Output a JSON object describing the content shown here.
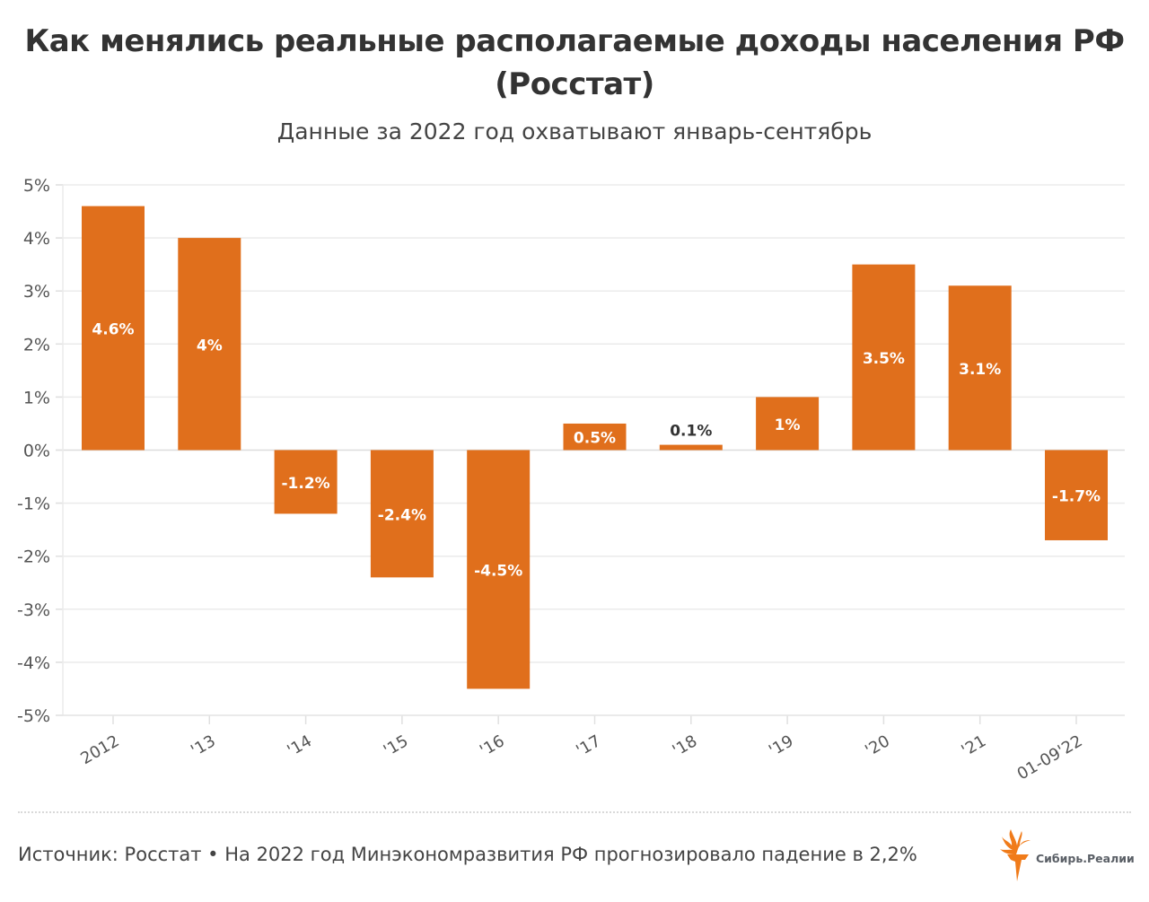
{
  "header": {
    "title_line1": "Как менялись реальные располагаемые доходы населения РФ",
    "title_line2": "(Росстат)",
    "subtitle": "Данные за 2022 год охватывают январь-сентябрь"
  },
  "chart_data": {
    "type": "bar",
    "title": "Как менялись реальные располагаемые доходы населения РФ (Росстат)",
    "subtitle": "Данные за 2022 год охватывают январь-сентябрь",
    "xlabel": "",
    "ylabel": "",
    "categories": [
      "2012",
      "'13",
      "'14",
      "'15",
      "'16",
      "'17",
      "'18",
      "'19",
      "'20",
      "'21",
      "01-09'22"
    ],
    "values": [
      4.6,
      4.0,
      -1.2,
      -2.4,
      -4.5,
      0.5,
      0.1,
      1.0,
      3.5,
      3.1,
      -1.7
    ],
    "data_labels": [
      "4.6%",
      "4%",
      "-1.2%",
      "-2.4%",
      "-4.5%",
      "0.5%",
      "0.1%",
      "1%",
      "3.5%",
      "3.1%",
      "-1.7%"
    ],
    "ylim": [
      -5,
      5
    ],
    "yticks": [
      5,
      4,
      3,
      2,
      1,
      0,
      -1,
      -2,
      -3,
      -4,
      -5
    ],
    "ytick_labels": [
      "5%",
      "4%",
      "3%",
      "2%",
      "1%",
      "0%",
      "-1%",
      "-2%",
      "-3%",
      "-4%",
      "-5%"
    ],
    "grid": true,
    "legend": "none",
    "bar_color": "#e06f1c",
    "label_color_inside": "#ffffff",
    "label_color_outside": "#333333"
  },
  "footer": {
    "source": "Источник: Росстат • На 2022 год Минэкономразвития РФ прогнозировало падение в 2,2%",
    "logo_text": "Сибирь.Реалии",
    "logo_color": "#f07b1a"
  }
}
